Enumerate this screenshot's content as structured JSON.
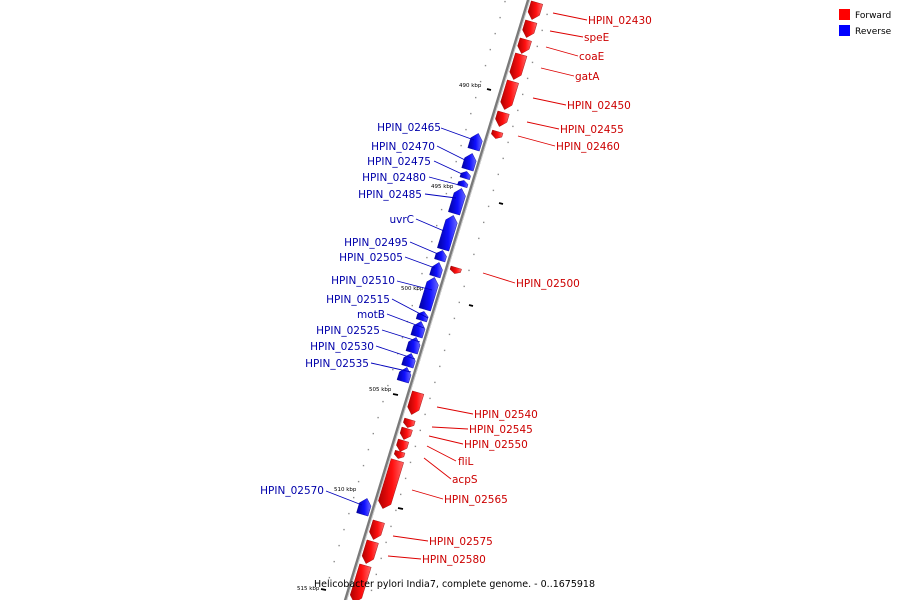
{
  "caption": "Helicobacter pylori India7, complete genome. - 0..1675918",
  "legend": [
    {
      "label": "Forward",
      "color": "#ff0000"
    },
    {
      "label": "Reverse",
      "color": "#0000ff"
    }
  ],
  "ticks": [
    "490 kbp",
    "495 kbp",
    "500 kbp",
    "505 kbp",
    "510 kbp",
    "515 kbp"
  ],
  "genes": [
    {
      "name": "HPIN_02430",
      "strand": "forward"
    },
    {
      "name": "speE",
      "strand": "forward"
    },
    {
      "name": "coaE",
      "strand": "forward"
    },
    {
      "name": "gatA",
      "strand": "forward"
    },
    {
      "name": "HPIN_02450",
      "strand": "forward"
    },
    {
      "name": "HPIN_02455",
      "strand": "forward"
    },
    {
      "name": "HPIN_02460",
      "strand": "forward"
    },
    {
      "name": "HPIN_02465",
      "strand": "reverse"
    },
    {
      "name": "HPIN_02470",
      "strand": "reverse"
    },
    {
      "name": "HPIN_02475",
      "strand": "reverse"
    },
    {
      "name": "HPIN_02480",
      "strand": "reverse"
    },
    {
      "name": "HPIN_02485",
      "strand": "reverse"
    },
    {
      "name": "uvrC",
      "strand": "reverse"
    },
    {
      "name": "HPIN_02495",
      "strand": "reverse"
    },
    {
      "name": "HPIN_02505",
      "strand": "reverse"
    },
    {
      "name": "HPIN_02500",
      "strand": "forward"
    },
    {
      "name": "HPIN_02510",
      "strand": "reverse"
    },
    {
      "name": "HPIN_02515",
      "strand": "reverse"
    },
    {
      "name": "motB",
      "strand": "reverse"
    },
    {
      "name": "HPIN_02525",
      "strand": "reverse"
    },
    {
      "name": "HPIN_02530",
      "strand": "reverse"
    },
    {
      "name": "HPIN_02535",
      "strand": "reverse"
    },
    {
      "name": "HPIN_02540",
      "strand": "forward"
    },
    {
      "name": "HPIN_02545",
      "strand": "forward"
    },
    {
      "name": "HPIN_02550",
      "strand": "forward"
    },
    {
      "name": "fliL",
      "strand": "forward"
    },
    {
      "name": "acpS",
      "strand": "forward"
    },
    {
      "name": "HPIN_02565",
      "strand": "forward"
    },
    {
      "name": "HPIN_02570",
      "strand": "reverse"
    },
    {
      "name": "HPIN_02575",
      "strand": "forward"
    },
    {
      "name": "HPIN_02580",
      "strand": "forward"
    }
  ]
}
